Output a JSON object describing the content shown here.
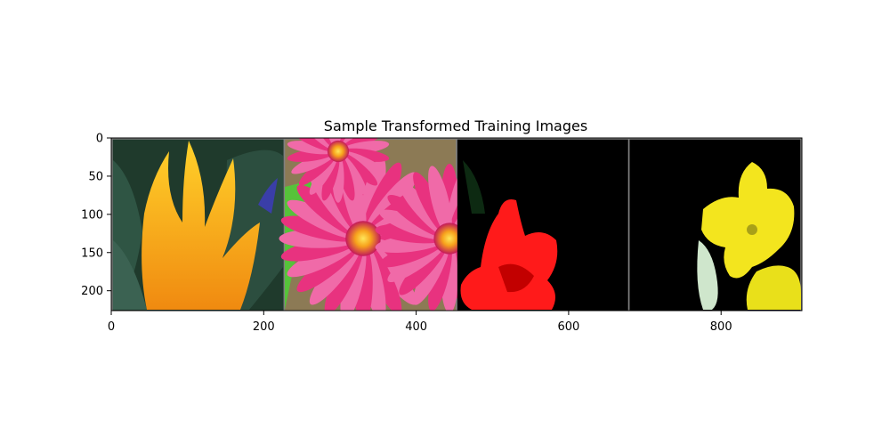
{
  "chart_data": {
    "type": "image",
    "title": "Sample Transformed Training Images",
    "xlabel": "",
    "ylabel": "",
    "xlim": [
      0,
      906
    ],
    "ylim": [
      226,
      0
    ],
    "x_ticks": [
      0,
      200,
      400,
      600,
      800
    ],
    "y_ticks": [
      0,
      50,
      100,
      150,
      200
    ],
    "grid": false,
    "tiles": [
      {
        "x_start": 2,
        "x_end": 226,
        "description": "orange-yellow tulip on dark green background"
      },
      {
        "x_start": 228,
        "x_end": 452,
        "description": "pink gerbera daisies"
      },
      {
        "x_start": 454,
        "x_end": 678,
        "description": "red flower on black background"
      },
      {
        "x_start": 680,
        "x_end": 904,
        "description": "yellow flower on black background"
      }
    ],
    "colors": {
      "frame": "#808080",
      "tulip_orange": "#f7a21c",
      "daisy_pink": "#ee3d8e",
      "red_flower": "#ff1a1a",
      "yellow_flower": "#f7ea1a"
    }
  }
}
